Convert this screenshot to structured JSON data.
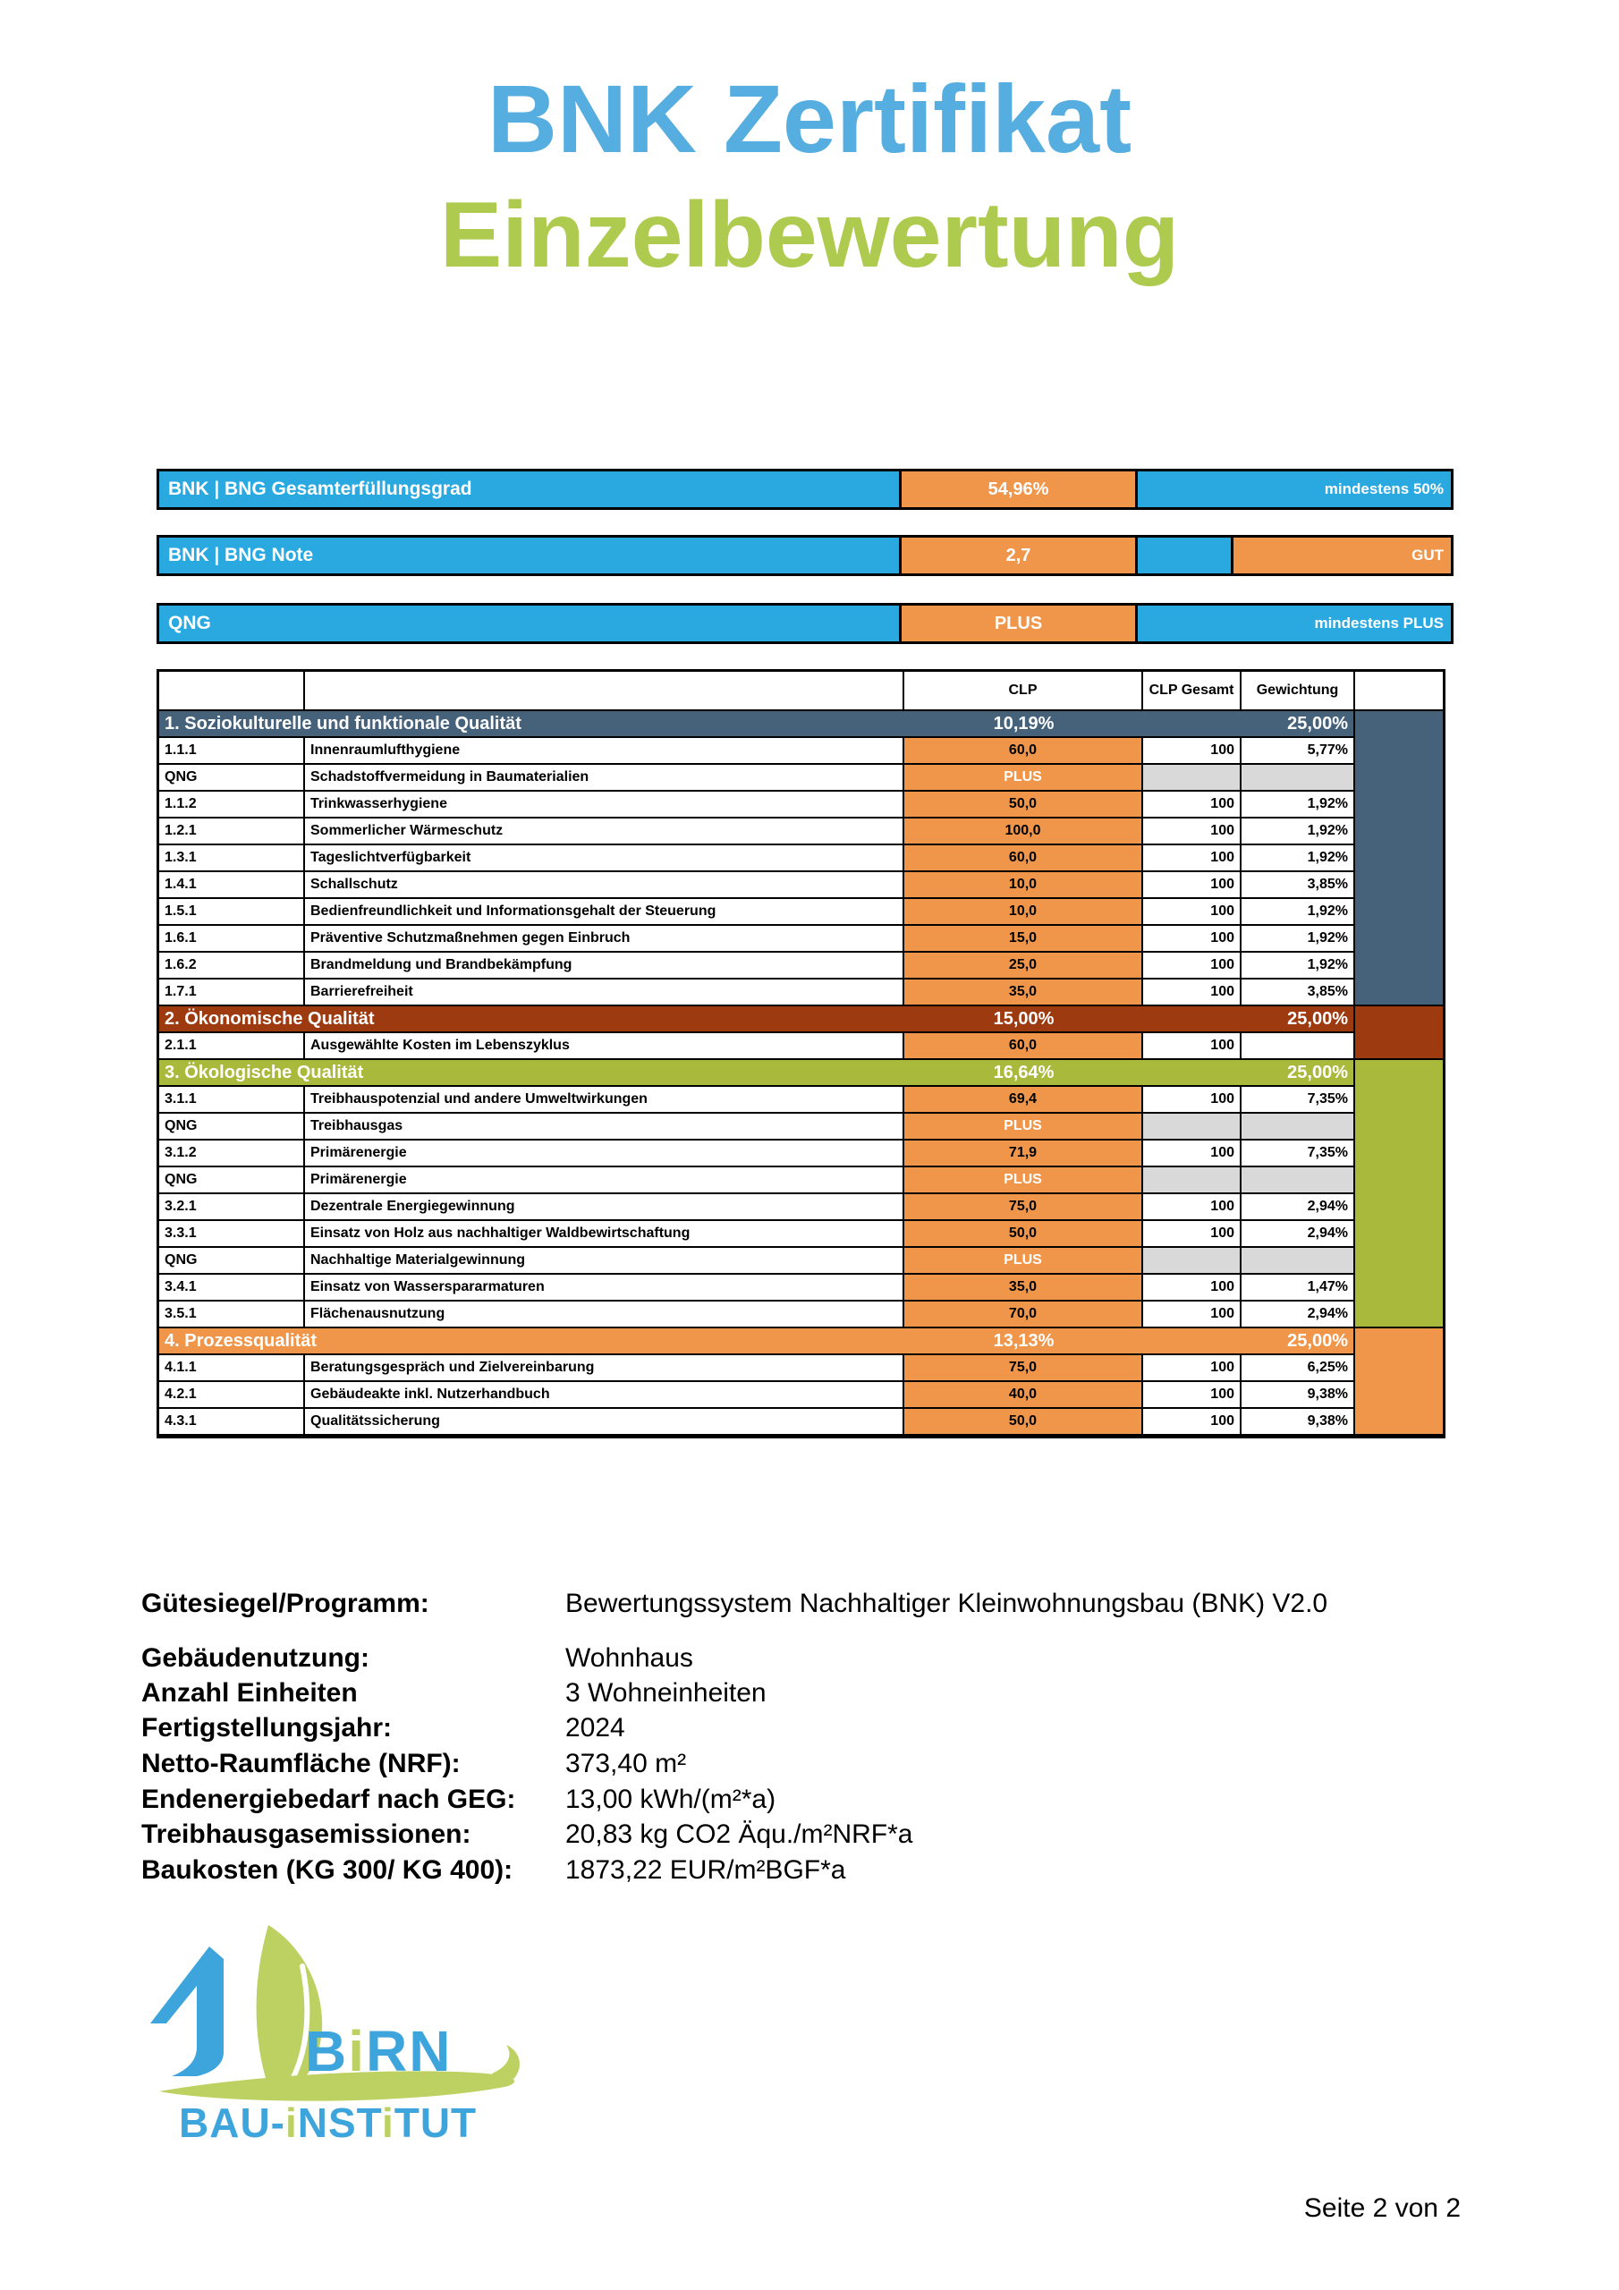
{
  "page": {
    "title_line1": "BNK Zertifikat",
    "title_line2": "Einzelbewertung",
    "footer": "Seite 2 von 2"
  },
  "colors": {
    "blue": "#29A9E0",
    "orange": "#F0964B",
    "title_blue": "#55ADE0",
    "title_green": "#AECB4F",
    "qng_gray": "#D9D9D9",
    "logo_blue": "#3EA4DC",
    "logo_green": "#BCD162",
    "section1": "#46627B",
    "section2": "#9E3A10",
    "section3": "#A9B93B",
    "section4": "#F0964B"
  },
  "summary_bars": [
    {
      "label": "BNK | BNG Gesamterfüllungsgrad",
      "value": "54,96%",
      "note": "mindestens 50%"
    },
    {
      "label": "BNK | BNG Note",
      "value": "2,7",
      "note": "GUT"
    },
    {
      "label": "QNG",
      "value": "PLUS",
      "note": "mindestens PLUS"
    }
  ],
  "table": {
    "columns": [
      "",
      "",
      "CLP",
      "CLP Gesamt",
      "Gewichtung",
      ""
    ],
    "sections": [
      {
        "title": "1. Soziokulturelle und funktionale Qualität",
        "clp": "10,19%",
        "weight": "25,00%",
        "color": "#46627B",
        "rows": [
          {
            "id": "1.1.1",
            "name": "Innenraumlufthygiene",
            "clp": "60,0",
            "gesamt": "100",
            "weight": "5,77%"
          },
          {
            "id": "QNG",
            "name": "Schadstoffvermeidung in Baumaterialien",
            "clp": "PLUS",
            "gesamt": "",
            "weight": "",
            "qng": true
          },
          {
            "id": "1.1.2",
            "name": "Trinkwasserhygiene",
            "clp": "50,0",
            "gesamt": "100",
            "weight": "1,92%"
          },
          {
            "id": "1.2.1",
            "name": "Sommerlicher Wärmeschutz",
            "clp": "100,0",
            "gesamt": "100",
            "weight": "1,92%"
          },
          {
            "id": "1.3.1",
            "name": "Tageslichtverfügbarkeit",
            "clp": "60,0",
            "gesamt": "100",
            "weight": "1,92%"
          },
          {
            "id": "1.4.1",
            "name": "Schallschutz",
            "clp": "10,0",
            "gesamt": "100",
            "weight": "3,85%"
          },
          {
            "id": "1.5.1",
            "name": "Bedienfreundlichkeit und Informationsgehalt der Steuerung",
            "clp": "10,0",
            "gesamt": "100",
            "weight": "1,92%"
          },
          {
            "id": "1.6.1",
            "name": "Präventive Schutzmaßnehmen gegen Einbruch",
            "clp": "15,0",
            "gesamt": "100",
            "weight": "1,92%"
          },
          {
            "id": "1.6.2",
            "name": "Brandmeldung und Brandbekämpfung",
            "clp": "25,0",
            "gesamt": "100",
            "weight": "1,92%"
          },
          {
            "id": "1.7.1",
            "name": "Barrierefreiheit",
            "clp": "35,0",
            "gesamt": "100",
            "weight": "3,85%"
          }
        ]
      },
      {
        "title": "2. Ökonomische Qualität",
        "clp": "15,00%",
        "weight": "25,00%",
        "color": "#9E3A10",
        "rows": [
          {
            "id": "2.1.1",
            "name": "Ausgewählte Kosten im Lebenszyklus",
            "clp": "60,0",
            "gesamt": "100",
            "weight": ""
          }
        ]
      },
      {
        "title": "3. Ökologische Qualität",
        "clp": "16,64%",
        "weight": "25,00%",
        "color": "#A9B93B",
        "rows": [
          {
            "id": "3.1.1",
            "name": "Treibhauspotenzial und andere Umweltwirkungen",
            "clp": "69,4",
            "gesamt": "100",
            "weight": "7,35%"
          },
          {
            "id": "QNG",
            "name": "Treibhausgas",
            "clp": "PLUS",
            "gesamt": "",
            "weight": "",
            "qng": true
          },
          {
            "id": "3.1.2",
            "name": "Primärenergie",
            "clp": "71,9",
            "gesamt": "100",
            "weight": "7,35%"
          },
          {
            "id": "QNG",
            "name": "Primärenergie",
            "clp": "PLUS",
            "gesamt": "",
            "weight": "",
            "qng": true
          },
          {
            "id": "3.2.1",
            "name": "Dezentrale Energiegewinnung",
            "clp": "75,0",
            "gesamt": "100",
            "weight": "2,94%"
          },
          {
            "id": "3.3.1",
            "name": "Einsatz von Holz aus nachhaltiger Waldbewirtschaftung",
            "clp": "50,0",
            "gesamt": "100",
            "weight": "2,94%"
          },
          {
            "id": "QNG",
            "name": "Nachhaltige Materialgewinnung",
            "clp": "PLUS",
            "gesamt": "",
            "weight": "",
            "qng": true
          },
          {
            "id": "3.4.1",
            "name": "Einsatz von Wasserspararmaturen",
            "clp": "35,0",
            "gesamt": "100",
            "weight": "1,47%"
          },
          {
            "id": "3.5.1",
            "name": "Flächenausnutzung",
            "clp": "70,0",
            "gesamt": "100",
            "weight": "2,94%"
          }
        ]
      },
      {
        "title": "4. Prozessqualität",
        "clp": "13,13%",
        "weight": "25,00%",
        "color": "#F0964B",
        "rows": [
          {
            "id": "4.1.1",
            "name": "Beratungsgespräch und Zielvereinbarung",
            "clp": "75,0",
            "gesamt": "100",
            "weight": "6,25%"
          },
          {
            "id": "4.2.1",
            "name": "Gebäudeakte inkl. Nutzerhandbuch",
            "clp": "40,0",
            "gesamt": "100",
            "weight": "9,38%"
          },
          {
            "id": "4.3.1",
            "name": "Qualitätssicherung",
            "clp": "50,0",
            "gesamt": "100",
            "weight": "9,38%"
          }
        ]
      }
    ]
  },
  "info": {
    "rows": [
      {
        "label": "Gütesiegel/Programm:",
        "value": "Bewertungssystem Nachhaltiger Kleinwohnungsbau (BNK) V2.0"
      },
      {
        "label": "Gebäudenutzung:",
        "value": "Wohnhaus"
      },
      {
        "label": "Anzahl Einheiten",
        "value": "3 Wohneinheiten"
      },
      {
        "label": "Fertigstellungsjahr:",
        "value": "2024"
      },
      {
        "label": "Netto-Raumfläche (NRF):",
        "value": "373,40 m²"
      },
      {
        "label": "Endenergiebedarf nach GEG:",
        "value": "13,00 kWh/(m²*a)"
      },
      {
        "label": "Treibhausgasemissionen:",
        "value": "20,83 kg CO2 Äqu./m²NRF*a"
      },
      {
        "label": "Baukosten (KG 300/ KG 400):",
        "value": "1873,22 EUR/m²BGF*a"
      }
    ]
  },
  "logo": {
    "birn_segments": [
      {
        "text": "B",
        "color": "blue"
      },
      {
        "text": "i",
        "color": "green"
      },
      {
        "text": "RN",
        "color": "blue"
      }
    ],
    "institute_segments": [
      {
        "text": "BAU-",
        "color": "blue"
      },
      {
        "text": "i",
        "color": "green"
      },
      {
        "text": "NST",
        "color": "blue"
      },
      {
        "text": "i",
        "color": "green"
      },
      {
        "text": "TUT",
        "color": "blue"
      }
    ]
  }
}
